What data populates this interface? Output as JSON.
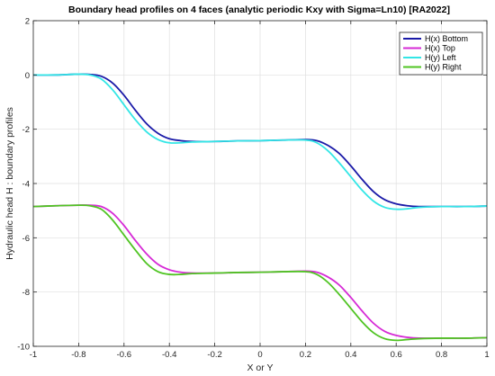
{
  "chart_data": {
    "type": "line",
    "title": "Boundary head profiles on 4 faces (analytic periodic Kxy with Sigma=Ln10) [RA2022]",
    "xlabel": "X or Y",
    "ylabel": "Hydraulic head H : boundary profiles",
    "xlim": [
      -1,
      1
    ],
    "ylim": [
      -10,
      2
    ],
    "xticks": [
      "-1",
      "-0.8",
      "-0.6",
      "-0.4",
      "-0.2",
      "0",
      "0.2",
      "0.4",
      "0.6",
      "0.8",
      "1"
    ],
    "yticks": [
      "-10",
      "-8",
      "-6",
      "-4",
      "-2",
      "0",
      "2"
    ],
    "grid": true,
    "legend_position": "top-right",
    "series": [
      {
        "name": "H(x) Bottom",
        "color": "#1a1aa8",
        "x": [
          -1,
          -0.9,
          -0.8,
          -0.75,
          -0.7,
          -0.65,
          -0.6,
          -0.55,
          -0.5,
          -0.45,
          -0.4,
          -0.35,
          -0.3,
          -0.2,
          -0.1,
          0,
          0.1,
          0.2,
          0.25,
          0.3,
          0.35,
          0.4,
          0.45,
          0.5,
          0.55,
          0.6,
          0.65,
          0.7,
          0.8,
          0.9,
          1
        ],
        "y": [
          0,
          0,
          0.03,
          0.02,
          -0.05,
          -0.3,
          -0.75,
          -1.3,
          -1.8,
          -2.15,
          -2.35,
          -2.42,
          -2.45,
          -2.45,
          -2.43,
          -2.42,
          -2.4,
          -2.38,
          -2.42,
          -2.6,
          -2.9,
          -3.35,
          -3.85,
          -4.3,
          -4.6,
          -4.75,
          -4.82,
          -4.85,
          -4.85,
          -4.85,
          -4.83
        ]
      },
      {
        "name": "H(x) Top",
        "color": "#d62ad6",
        "x": [
          -1,
          -0.9,
          -0.8,
          -0.75,
          -0.7,
          -0.65,
          -0.6,
          -0.55,
          -0.5,
          -0.45,
          -0.4,
          -0.35,
          -0.3,
          -0.2,
          -0.1,
          0,
          0.1,
          0.2,
          0.25,
          0.3,
          0.35,
          0.4,
          0.45,
          0.5,
          0.55,
          0.6,
          0.65,
          0.7,
          0.8,
          0.9,
          1
        ],
        "y": [
          -4.85,
          -4.82,
          -4.8,
          -4.8,
          -4.85,
          -5.1,
          -5.55,
          -6.1,
          -6.6,
          -6.98,
          -7.18,
          -7.27,
          -7.3,
          -7.3,
          -7.28,
          -7.27,
          -7.25,
          -7.23,
          -7.27,
          -7.45,
          -7.75,
          -8.2,
          -8.7,
          -9.15,
          -9.45,
          -9.6,
          -9.67,
          -9.7,
          -9.7,
          -9.7,
          -9.68
        ]
      },
      {
        "name": "H(y) Left",
        "color": "#33e6e6",
        "x": [
          -1,
          -0.9,
          -0.8,
          -0.75,
          -0.7,
          -0.65,
          -0.6,
          -0.55,
          -0.5,
          -0.45,
          -0.4,
          -0.35,
          -0.3,
          -0.2,
          -0.1,
          0,
          0.1,
          0.2,
          0.25,
          0.3,
          0.35,
          0.4,
          0.45,
          0.5,
          0.55,
          0.6,
          0.65,
          0.7,
          0.8,
          0.9,
          1
        ],
        "y": [
          0,
          0,
          0.03,
          0.0,
          -0.15,
          -0.55,
          -1.1,
          -1.65,
          -2.1,
          -2.38,
          -2.5,
          -2.5,
          -2.47,
          -2.45,
          -2.43,
          -2.42,
          -2.4,
          -2.4,
          -2.5,
          -2.8,
          -3.25,
          -3.75,
          -4.25,
          -4.65,
          -4.88,
          -4.95,
          -4.93,
          -4.88,
          -4.85,
          -4.85,
          -4.83
        ]
      },
      {
        "name": "H(y) Right",
        "color": "#4fc422",
        "x": [
          -1,
          -0.9,
          -0.8,
          -0.75,
          -0.7,
          -0.65,
          -0.6,
          -0.55,
          -0.5,
          -0.45,
          -0.4,
          -0.35,
          -0.3,
          -0.2,
          -0.1,
          0,
          0.1,
          0.2,
          0.25,
          0.3,
          0.35,
          0.4,
          0.45,
          0.5,
          0.55,
          0.6,
          0.65,
          0.7,
          0.8,
          0.9,
          1
        ],
        "y": [
          -4.85,
          -4.82,
          -4.8,
          -4.82,
          -4.95,
          -5.35,
          -5.9,
          -6.45,
          -6.95,
          -7.25,
          -7.35,
          -7.35,
          -7.32,
          -7.3,
          -7.28,
          -7.27,
          -7.25,
          -7.25,
          -7.35,
          -7.65,
          -8.1,
          -8.6,
          -9.1,
          -9.5,
          -9.72,
          -9.78,
          -9.75,
          -9.72,
          -9.7,
          -9.7,
          -9.68
        ]
      }
    ]
  }
}
